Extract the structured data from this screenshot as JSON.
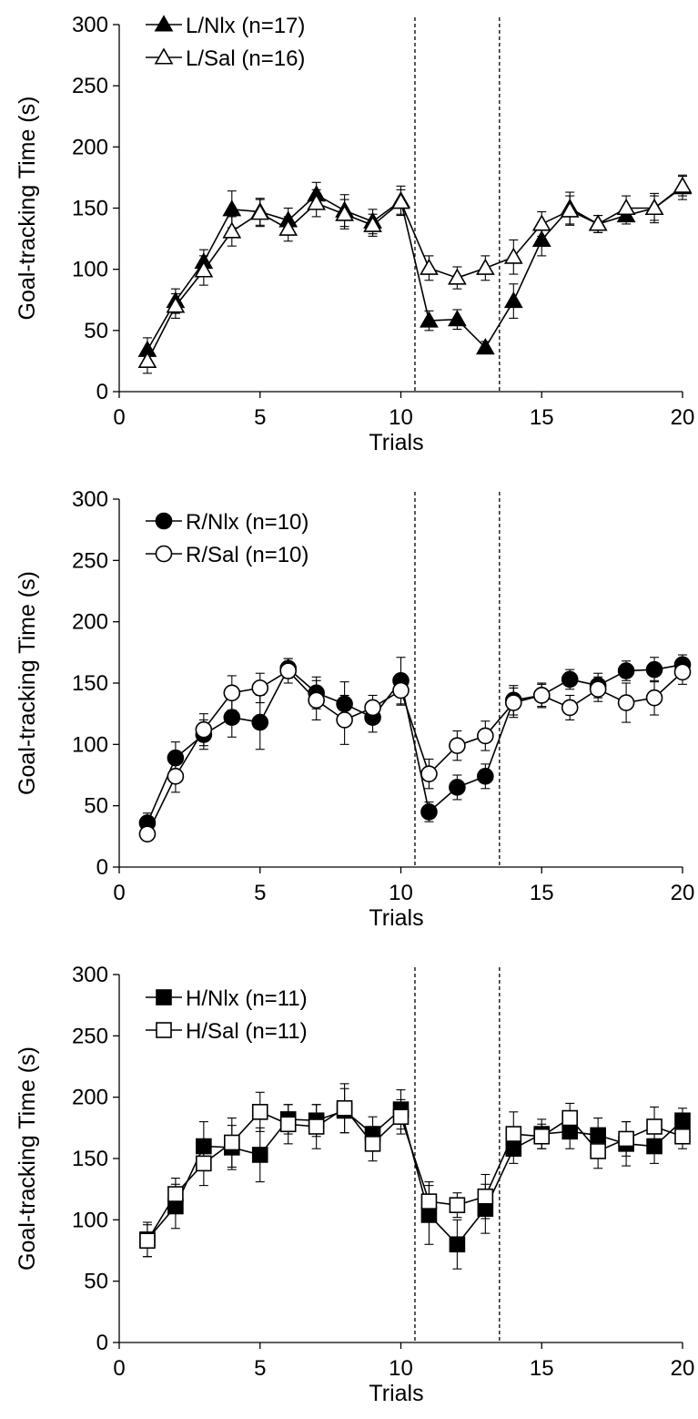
{
  "chart_data": [
    {
      "type": "line",
      "xlabel": "Trials",
      "ylabel": "Goal-tracking Time (s)",
      "xlim": [
        0,
        20
      ],
      "ylim": [
        0,
        300
      ],
      "xticks": [
        0,
        5,
        10,
        15,
        20
      ],
      "yticks": [
        0,
        50,
        100,
        150,
        200,
        250,
        300
      ],
      "vlines": [
        10.5,
        13.5
      ],
      "legend_position": "top-left",
      "x": [
        1,
        2,
        3,
        4,
        5,
        6,
        7,
        8,
        9,
        10,
        11,
        12,
        13,
        14,
        15,
        16,
        17,
        18,
        19,
        20
      ],
      "series": [
        {
          "name": "L/Nlx (n=17)",
          "marker": "triangle",
          "filled": true,
          "values": [
            34,
            74,
            106,
            149,
            147,
            140,
            161,
            148,
            139,
            156,
            58,
            59,
            36,
            74,
            124,
            150,
            137,
            144,
            150,
            167
          ],
          "errors": [
            10,
            10,
            10,
            15,
            11,
            10,
            10,
            13,
            10,
            12,
            8,
            8,
            5,
            14,
            13,
            13,
            7,
            7,
            12,
            10
          ]
        },
        {
          "name": "L/Sal (n=16)",
          "marker": "triangle",
          "filled": false,
          "values": [
            25,
            70,
            99,
            131,
            146,
            133,
            154,
            145,
            136,
            155,
            101,
            93,
            101,
            110,
            137,
            148,
            137,
            150,
            150,
            168
          ],
          "errors": [
            10,
            10,
            12,
            12,
            11,
            10,
            11,
            12,
            9,
            10,
            10,
            9,
            10,
            14,
            10,
            12,
            7,
            10,
            10,
            8
          ]
        }
      ]
    },
    {
      "type": "line",
      "xlabel": "Trials",
      "ylabel": "Goal-tracking Time (s)",
      "xlim": [
        0,
        20
      ],
      "ylim": [
        0,
        300
      ],
      "xticks": [
        0,
        5,
        10,
        15,
        20
      ],
      "yticks": [
        0,
        50,
        100,
        150,
        200,
        250,
        300
      ],
      "vlines": [
        10.5,
        13.5
      ],
      "legend_position": "top-left",
      "x": [
        1,
        2,
        3,
        4,
        5,
        6,
        7,
        8,
        9,
        10,
        11,
        12,
        13,
        14,
        15,
        16,
        17,
        18,
        19,
        20
      ],
      "series": [
        {
          "name": "R/Nlx (n=10)",
          "marker": "circle",
          "filled": true,
          "values": [
            36,
            89,
            108,
            122,
            118,
            162,
            142,
            133,
            122,
            152,
            45,
            65,
            74,
            136,
            140,
            153,
            148,
            160,
            161,
            165
          ],
          "errors": [
            8,
            13,
            12,
            16,
            22,
            8,
            13,
            18,
            12,
            19,
            8,
            10,
            10,
            12,
            10,
            8,
            10,
            8,
            10,
            8
          ]
        },
        {
          "name": "R/Sal (n=10)",
          "marker": "circle",
          "filled": false,
          "values": [
            27,
            74,
            112,
            142,
            146,
            160,
            136,
            120,
            130,
            144,
            76,
            99,
            107,
            134,
            140,
            130,
            145,
            134,
            138,
            159
          ],
          "errors": [
            5,
            13,
            13,
            14,
            12,
            10,
            16,
            20,
            10,
            12,
            12,
            12,
            12,
            12,
            9,
            10,
            10,
            16,
            14,
            10
          ]
        }
      ]
    },
    {
      "type": "line",
      "xlabel": "Trials",
      "ylabel": "Goal-tracking Time (s)",
      "xlim": [
        0,
        20
      ],
      "ylim": [
        0,
        300
      ],
      "xticks": [
        0,
        5,
        10,
        15,
        20
      ],
      "yticks": [
        0,
        50,
        100,
        150,
        200,
        250,
        300
      ],
      "vlines": [
        10.5,
        13.5
      ],
      "legend_position": "top-left",
      "x": [
        1,
        2,
        3,
        4,
        5,
        6,
        7,
        8,
        9,
        10,
        11,
        12,
        13,
        14,
        15,
        16,
        17,
        18,
        19,
        20
      ],
      "series": [
        {
          "name": "H/Nlx (n=11)",
          "marker": "square",
          "filled": true,
          "values": [
            84,
            111,
            160,
            159,
            153,
            182,
            181,
            189,
            170,
            190,
            104,
            80,
            109,
            158,
            170,
            172,
            169,
            162,
            160,
            181
          ],
          "errors": [
            14,
            18,
            20,
            18,
            22,
            12,
            13,
            18,
            14,
            16,
            24,
            20,
            20,
            12,
            12,
            14,
            14,
            18,
            14,
            10
          ]
        },
        {
          "name": "H/Sal (n=11)",
          "marker": "square",
          "filled": false,
          "values": [
            83,
            121,
            146,
            163,
            188,
            178,
            176,
            191,
            162,
            184,
            115,
            112,
            119,
            170,
            168,
            183,
            156,
            166,
            176,
            168
          ],
          "errors": [
            13,
            13,
            18,
            20,
            16,
            16,
            18,
            20,
            14,
            14,
            16,
            10,
            18,
            18,
            10,
            12,
            14,
            14,
            16,
            10
          ]
        }
      ]
    }
  ]
}
